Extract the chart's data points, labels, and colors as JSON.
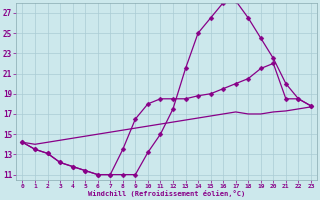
{
  "background_color": "#cce8ec",
  "grid_color": "#aaccd4",
  "line_color": "#880088",
  "xlabel": "Windchill (Refroidissement éolien,°C)",
  "xlabel_color": "#880088",
  "tick_color": "#880088",
  "xlim": [
    -0.5,
    23.5
  ],
  "ylim": [
    10.5,
    28
  ],
  "yticks": [
    11,
    13,
    15,
    17,
    19,
    21,
    23,
    25,
    27
  ],
  "xticks": [
    0,
    1,
    2,
    3,
    4,
    5,
    6,
    7,
    8,
    9,
    10,
    11,
    12,
    13,
    14,
    15,
    16,
    17,
    18,
    19,
    20,
    21,
    22,
    23
  ],
  "line1_x": [
    0,
    1,
    2,
    3,
    4,
    5,
    6,
    7,
    8,
    9,
    10,
    11,
    12,
    13,
    14,
    15,
    16,
    17,
    18,
    19,
    20,
    21,
    22,
    23
  ],
  "line1_y": [
    14.2,
    13.5,
    13.1,
    12.2,
    11.8,
    11.4,
    11.0,
    11.0,
    11.0,
    11.0,
    13.2,
    15.0,
    17.5,
    21.5,
    25.0,
    26.5,
    28.0,
    28.2,
    26.5,
    24.5,
    22.5,
    20.0,
    18.5,
    17.8
  ],
  "line2_x": [
    0,
    1,
    2,
    3,
    4,
    5,
    6,
    7,
    8,
    9,
    10,
    11,
    12,
    13,
    14,
    15,
    16,
    17,
    18,
    19,
    20,
    21,
    22,
    23
  ],
  "line2_y": [
    14.2,
    13.5,
    13.1,
    12.2,
    11.8,
    11.4,
    11.0,
    11.0,
    13.5,
    16.5,
    18.0,
    18.5,
    18.5,
    18.5,
    18.8,
    19.0,
    19.5,
    20.0,
    20.5,
    21.5,
    22.0,
    18.5,
    18.5,
    17.8
  ],
  "line3_x": [
    0,
    1,
    2,
    3,
    4,
    5,
    6,
    7,
    8,
    9,
    10,
    11,
    12,
    13,
    14,
    15,
    16,
    17,
    18,
    19,
    20,
    21,
    22,
    23
  ],
  "line3_y": [
    14.2,
    14.0,
    14.2,
    14.4,
    14.6,
    14.8,
    15.0,
    15.2,
    15.4,
    15.6,
    15.8,
    16.0,
    16.2,
    16.4,
    16.6,
    16.8,
    17.0,
    17.2,
    17.0,
    17.0,
    17.2,
    17.3,
    17.5,
    17.7
  ]
}
